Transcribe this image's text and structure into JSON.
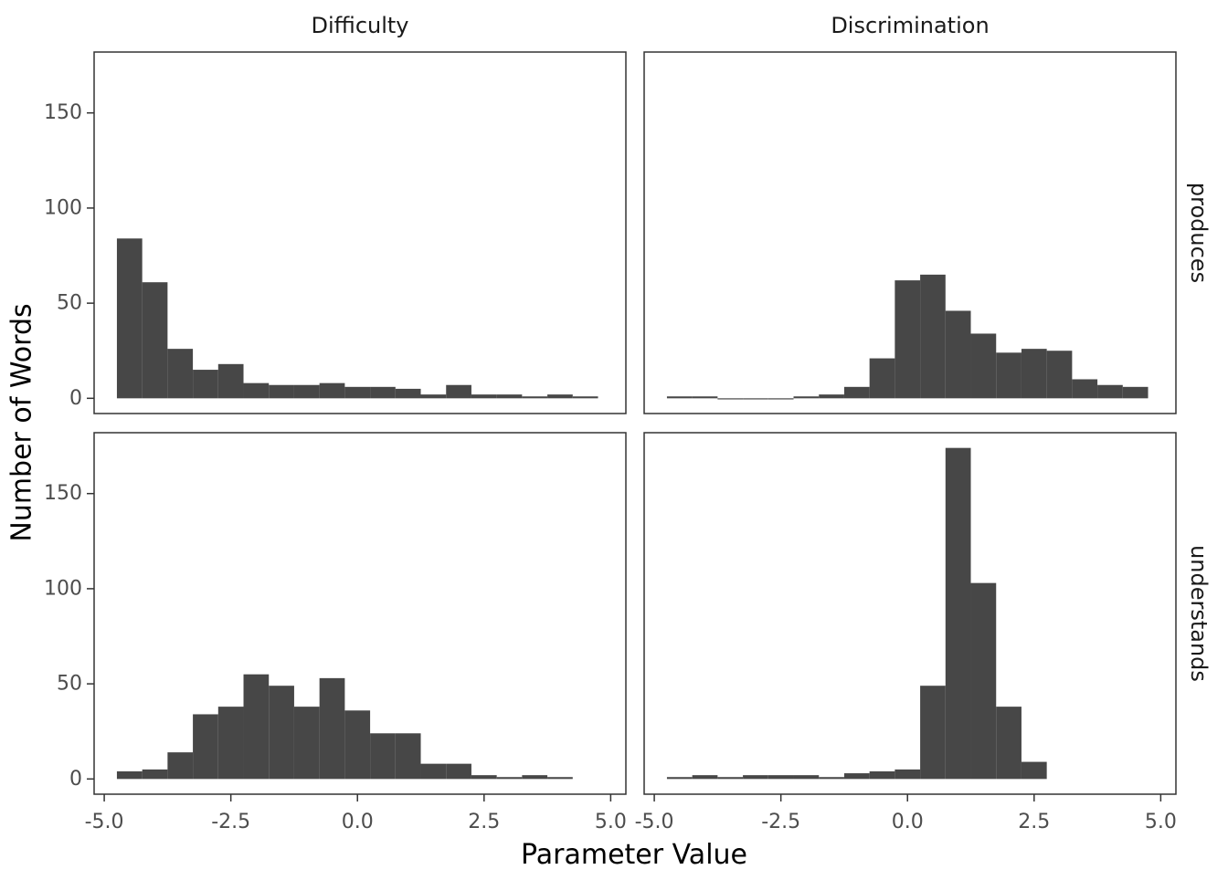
{
  "chart_data": {
    "type": "bar",
    "xlabel": "Parameter Value",
    "ylabel": "Number of Words",
    "col_facets": [
      "Difficulty",
      "Discrimination"
    ],
    "row_facets": [
      "produces",
      "understands"
    ],
    "xlim": [
      -5.2,
      5.3
    ],
    "ylim": [
      -8,
      182
    ],
    "x_ticks": [
      -5,
      -2.5,
      0,
      2.5,
      5
    ],
    "x_tick_labels": [
      "-5.0",
      "-2.5",
      "0.0",
      "2.5",
      "5.0"
    ],
    "y_ticks": [
      0,
      50,
      100,
      150
    ],
    "y_tick_labels": [
      "0",
      "50",
      "100",
      "150"
    ],
    "bin_start": -4.75,
    "bin_width": 0.5,
    "bar_color": "#474747",
    "panels": [
      {
        "row": "produces",
        "col": "Difficulty",
        "counts": [
          84,
          61,
          26,
          15,
          18,
          8,
          7,
          7,
          8,
          6,
          6,
          5,
          2,
          7,
          2,
          2,
          1,
          2,
          1,
          null
        ]
      },
      {
        "row": "produces",
        "col": "Discrimination",
        "counts": [
          1,
          1,
          0,
          0,
          0,
          1,
          2,
          6,
          21,
          62,
          65,
          46,
          34,
          24,
          26,
          25,
          10,
          7,
          6,
          null
        ]
      },
      {
        "row": "understands",
        "col": "Difficulty",
        "counts": [
          4,
          5,
          14,
          34,
          38,
          55,
          49,
          38,
          53,
          36,
          24,
          24,
          8,
          8,
          2,
          1,
          2,
          1,
          null,
          null
        ]
      },
      {
        "row": "understands",
        "col": "Discrimination",
        "counts": [
          1,
          2,
          1,
          2,
          2,
          2,
          1,
          3,
          4,
          5,
          49,
          174,
          103,
          38,
          9,
          null,
          null,
          null,
          null,
          null
        ]
      }
    ]
  }
}
